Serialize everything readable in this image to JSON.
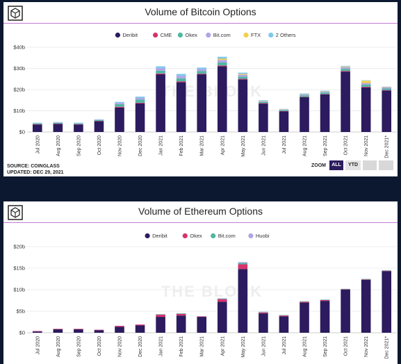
{
  "charts": [
    {
      "id": "btc",
      "title": "Volume of Bitcoin Options",
      "source": "SOURCE: COINGLASS",
      "updated": "UPDATED: DEC 29, 2021",
      "watermark": "THE BLOCK",
      "zoom": {
        "label": "ZOOM",
        "buttons": [
          "ALL",
          "YTD"
        ],
        "active": "ALL"
      },
      "colors": {
        "Deribit": "#2c1b5e",
        "CME": "#d6336c",
        "Okex": "#4fb7a0",
        "Bit.com": "#b0a4e6",
        "FTX": "#f1d04b",
        "2 Others": "#7ec8ee"
      },
      "chart_data": {
        "type": "bar",
        "stacked": true,
        "categories": [
          "Jul 2020",
          "Aug 2020",
          "Sep 2020",
          "Oct 2020",
          "Nov 2020",
          "Dec 2020",
          "Jan 2021",
          "Feb 2021",
          "Mar 2021",
          "Apr 2021",
          "May 2021",
          "Jun 2021",
          "Jul 2021",
          "Aug 2021",
          "Sep 2021",
          "Oct 2021",
          "Nov 2021",
          "Dec 2021*"
        ],
        "series": [
          {
            "name": "Deribit",
            "values": [
              3.5,
              3.8,
              3.5,
              5.1,
              11.5,
              13.5,
              27.2,
              23.5,
              27.2,
              31.0,
              24.8,
              13.4,
              9.8,
              16.5,
              17.8,
              28.5,
              21.0,
              19.6
            ]
          },
          {
            "name": "CME",
            "values": [
              0.1,
              0.1,
              0.1,
              0.1,
              0.4,
              0.3,
              0.4,
              0.4,
              0.3,
              0.4,
              0.3,
              0.2,
              0.1,
              0.1,
              0.1,
              0.3,
              0.3,
              0.2
            ]
          },
          {
            "name": "Okex",
            "values": [
              0.4,
              0.4,
              0.4,
              0.4,
              1.2,
              1.5,
              1.3,
              1.4,
              1.2,
              1.4,
              1.0,
              0.6,
              0.4,
              0.7,
              0.7,
              1.0,
              1.0,
              0.7
            ]
          },
          {
            "name": "Bit.com",
            "values": [
              0.2,
              0.2,
              0.2,
              0.2,
              0.6,
              0.8,
              1.3,
              1.2,
              1.0,
              1.2,
              0.9,
              0.4,
              0.3,
              0.5,
              0.5,
              0.8,
              0.8,
              0.6
            ]
          },
          {
            "name": "FTX",
            "values": [
              0,
              0,
              0,
              0,
              0,
              0,
              0,
              0,
              0,
              0.6,
              0.4,
              0.1,
              0.1,
              0.1,
              0.1,
              0.3,
              1.1,
              0.2
            ]
          },
          {
            "name": "2 Others",
            "values": [
              0.2,
              0.2,
              0.2,
              0.2,
              0.5,
              0.6,
              0.8,
              0.9,
              0.7,
              0.9,
              0.6,
              0.3,
              0.2,
              0.3,
              0.3,
              0.3,
              0.2,
              0.1
            ]
          }
        ],
        "ylim": [
          0,
          40
        ],
        "yticks": [
          "$0",
          "$10b",
          "$20b",
          "$30b",
          "$40b"
        ],
        "legend": "top-center"
      }
    },
    {
      "id": "eth",
      "title": "Volume of Ethereum Options",
      "watermark": "THE BLOCK",
      "colors": {
        "Deribit": "#2c1b5e",
        "Okex": "#d6336c",
        "Bit.com": "#4fb7a0",
        "Huobi": "#b0a4e6"
      },
      "chart_data": {
        "type": "bar",
        "stacked": true,
        "categories": [
          "Jul 2020",
          "Aug 2020",
          "Sep 2020",
          "Oct 2020",
          "Nov 2020",
          "Dec 2020",
          "Jan 2021",
          "Feb 2021",
          "Mar 2021",
          "Apr 2021",
          "May 2021",
          "Jun 2021",
          "Jul 2021",
          "Aug 2021",
          "Sep 2021",
          "Oct 2021",
          "Nov 2021",
          "Dec 2021*"
        ],
        "series": [
          {
            "name": "Deribit",
            "values": [
              0.3,
              0.8,
              0.8,
              0.6,
              1.4,
              1.7,
              3.7,
              4.0,
              3.7,
              7.2,
              14.8,
              4.5,
              3.8,
              7.0,
              7.4,
              10.0,
              12.3,
              14.3
            ]
          },
          {
            "name": "Okex",
            "values": [
              0.1,
              0.1,
              0.1,
              0.1,
              0.2,
              0.2,
              0.5,
              0.4,
              0.1,
              0.6,
              1.1,
              0.2,
              0.2,
              0.2,
              0.2,
              0.1,
              0.1,
              0.1
            ]
          },
          {
            "name": "Bit.com",
            "values": [
              0,
              0,
              0,
              0,
              0,
              0,
              0.1,
              0.1,
              0,
              0.1,
              0.3,
              0.1,
              0.1,
              0.1,
              0.1,
              0.1,
              0.1,
              0.1
            ]
          },
          {
            "name": "Huobi",
            "values": [
              0,
              0,
              0,
              0,
              0,
              0,
              0,
              0,
              0,
              0.1,
              0.2,
              0.1,
              0,
              0,
              0,
              0,
              0,
              0
            ]
          }
        ],
        "ylim": [
          0,
          20
        ],
        "yticks": [
          "$0",
          "$5b",
          "$10b",
          "$15b",
          "$20b"
        ],
        "legend": "top-center"
      }
    }
  ]
}
